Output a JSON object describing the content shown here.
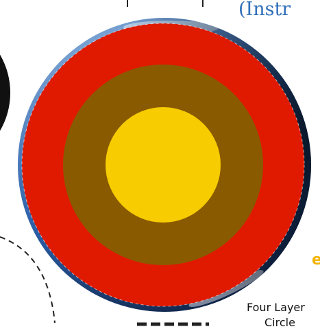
{
  "heading_fragment": "(Instr",
  "side_fragment": "e",
  "caption_line1": "Four Layer",
  "caption_line2": "Circle",
  "layers": [
    {
      "name": "outer-layer",
      "color": "#e01a00"
    },
    {
      "name": "middle-layer",
      "color": "#8a5a00"
    },
    {
      "name": "core",
      "color": "#f7cc00"
    }
  ],
  "colors": {
    "globe_ocean": "#2a5fa8",
    "globe_light": "#c9dcef",
    "heading": "#2f6fb8",
    "fragment": "#f2b400"
  }
}
